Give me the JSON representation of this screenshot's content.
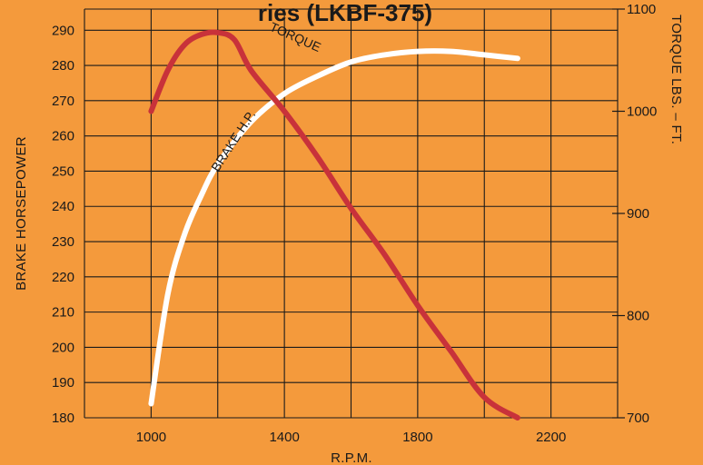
{
  "chart_data": {
    "type": "line",
    "title": "ries (LKBF-375)",
    "xlabel": "R.P.M.",
    "ylabel_left": "BRAKE HORSEPOWER",
    "ylabel_right": "TORQUE LBS. – FT.",
    "x_ticks": [
      1000,
      1400,
      1800,
      2200
    ],
    "y_left_ticks": [
      180,
      190,
      200,
      210,
      220,
      230,
      240,
      250,
      260,
      270,
      280,
      290
    ],
    "y_right_ticks": [
      700,
      800,
      900,
      1000,
      1100
    ],
    "xlim": [
      800,
      2400
    ],
    "ylim_left": [
      180,
      296
    ],
    "ylim_right": [
      700,
      1100
    ],
    "grid": true,
    "series": [
      {
        "name": "BRAKE H.P.",
        "axis": "left",
        "color": "#ffffff",
        "x": [
          1000,
          1050,
          1100,
          1150,
          1200,
          1300,
          1400,
          1500,
          1600,
          1700,
          1800,
          1900,
          2000,
          2100
        ],
        "values": [
          184,
          215,
          232,
          243,
          252,
          264,
          272,
          277,
          281,
          283,
          284,
          284,
          283,
          282
        ]
      },
      {
        "name": "TORQUE",
        "axis": "right",
        "color": "#c8323a",
        "x": [
          1000,
          1050,
          1100,
          1150,
          1200,
          1250,
          1300,
          1400,
          1500,
          1600,
          1700,
          1800,
          1900,
          2000,
          2100
        ],
        "values": [
          1000,
          1040,
          1065,
          1075,
          1077,
          1070,
          1040,
          1000,
          955,
          905,
          860,
          810,
          765,
          720,
          700
        ]
      }
    ]
  }
}
